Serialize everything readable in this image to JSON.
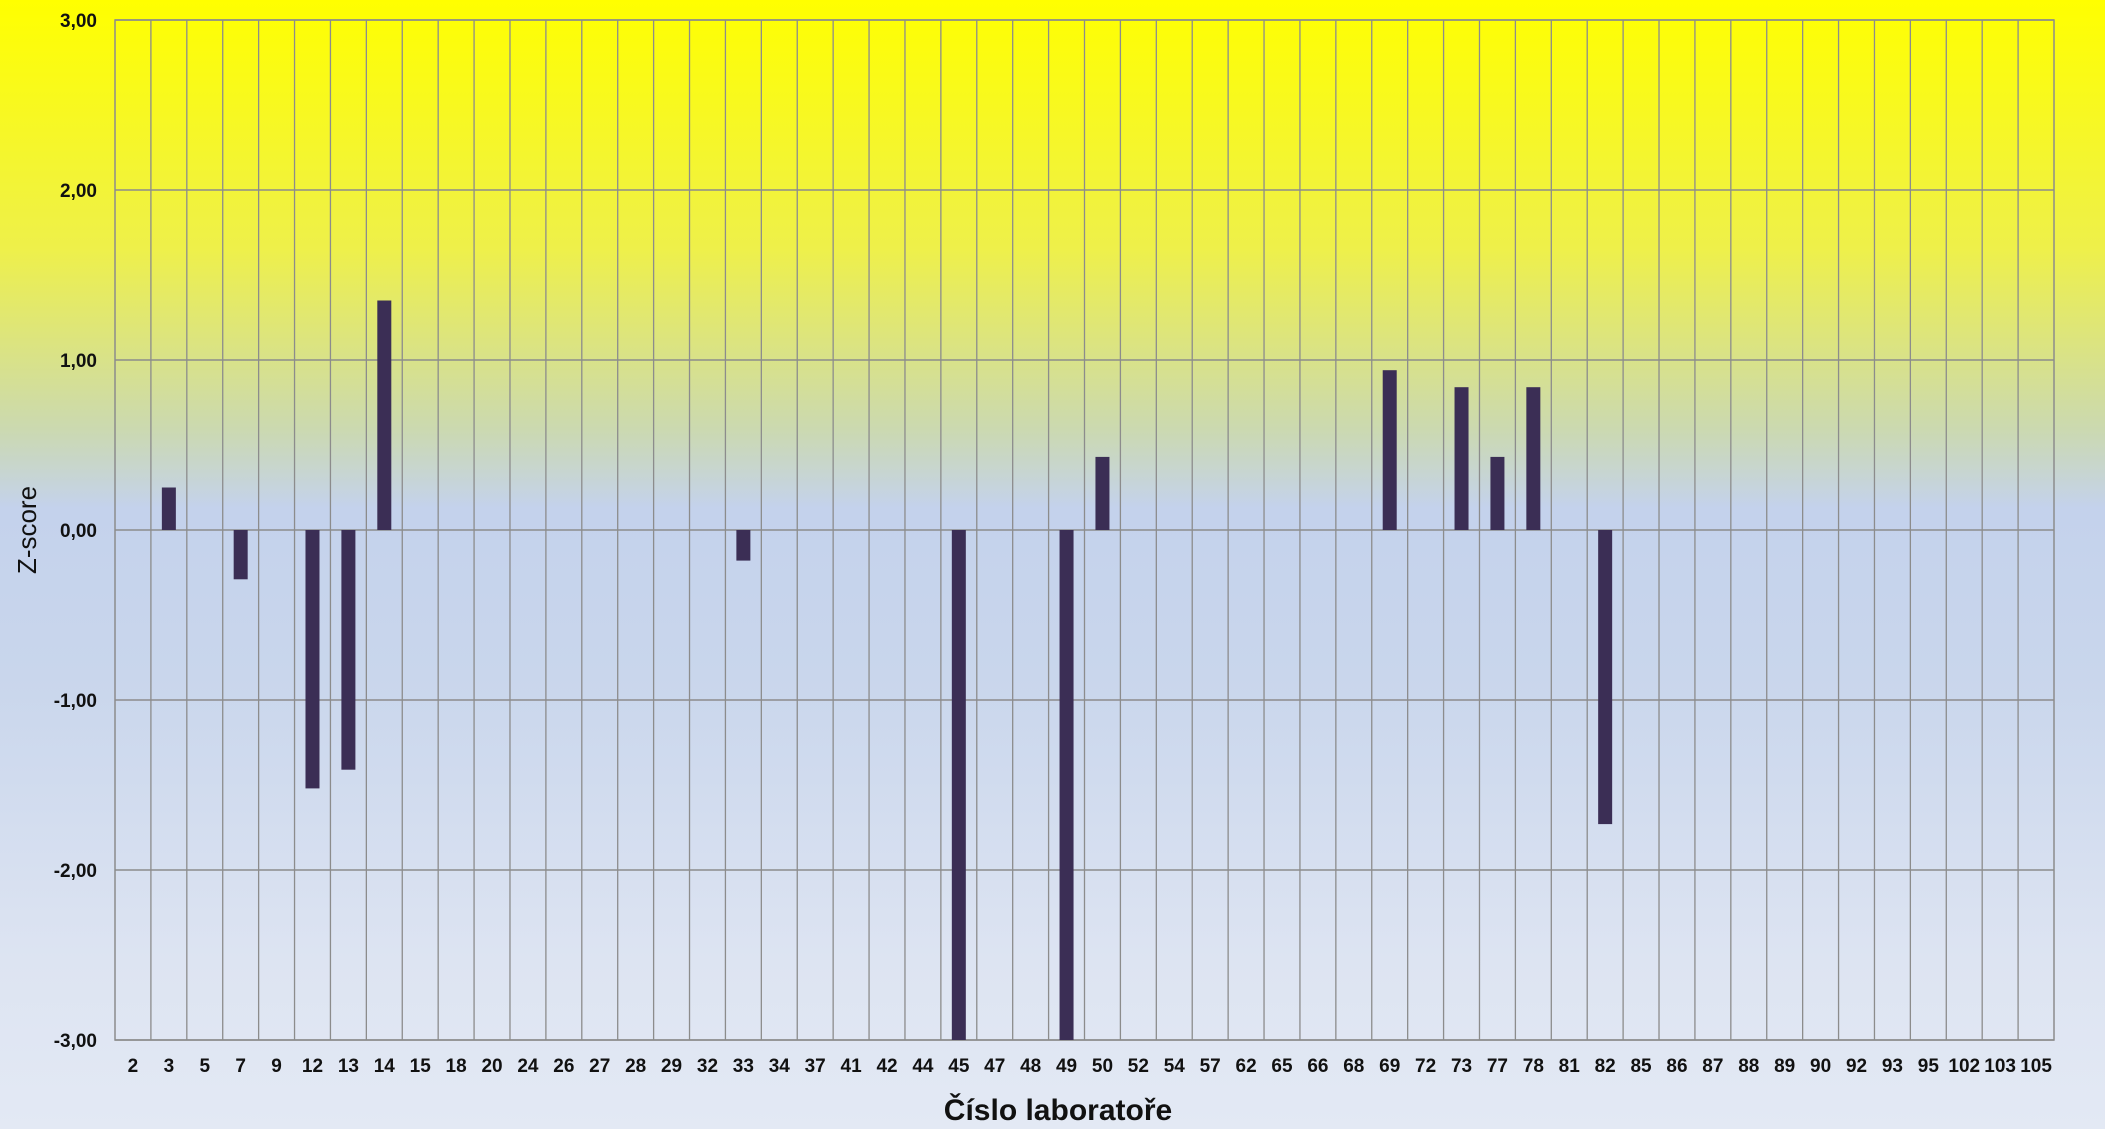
{
  "chart_data": {
    "type": "bar",
    "title": "",
    "xlabel": "Číslo laboratoře",
    "ylabel": "Z-score",
    "ylim": [
      -3,
      3
    ],
    "yticks": [
      "-3,00",
      "-2,00",
      "-1,00",
      "0,00",
      "1,00",
      "2,00",
      "3,00"
    ],
    "grid": true,
    "categories": [
      "2",
      "3",
      "5",
      "7",
      "9",
      "12",
      "13",
      "14",
      "15",
      "18",
      "20",
      "24",
      "26",
      "27",
      "28",
      "29",
      "32",
      "33",
      "34",
      "37",
      "41",
      "42",
      "44",
      "45",
      "47",
      "48",
      "49",
      "50",
      "52",
      "54",
      "57",
      "62",
      "65",
      "66",
      "68",
      "69",
      "72",
      "73",
      "77",
      "78",
      "81",
      "82",
      "85",
      "86",
      "87",
      "88",
      "89",
      "90",
      "92",
      "93",
      "95",
      "102",
      "103",
      "105"
    ],
    "values": [
      null,
      0.25,
      null,
      -0.29,
      null,
      -1.52,
      -1.41,
      1.35,
      null,
      null,
      null,
      null,
      null,
      null,
      null,
      null,
      null,
      -0.18,
      null,
      null,
      null,
      null,
      null,
      -3.0,
      null,
      null,
      -3.0,
      0.43,
      null,
      null,
      null,
      null,
      null,
      null,
      null,
      0.94,
      null,
      0.84,
      0.43,
      0.84,
      null,
      -1.73,
      null,
      null,
      null,
      null,
      null,
      null,
      null,
      null,
      null,
      null,
      null,
      null
    ],
    "colors": {
      "bar": "#3b2e55",
      "grid": "#8c8c8c"
    }
  }
}
